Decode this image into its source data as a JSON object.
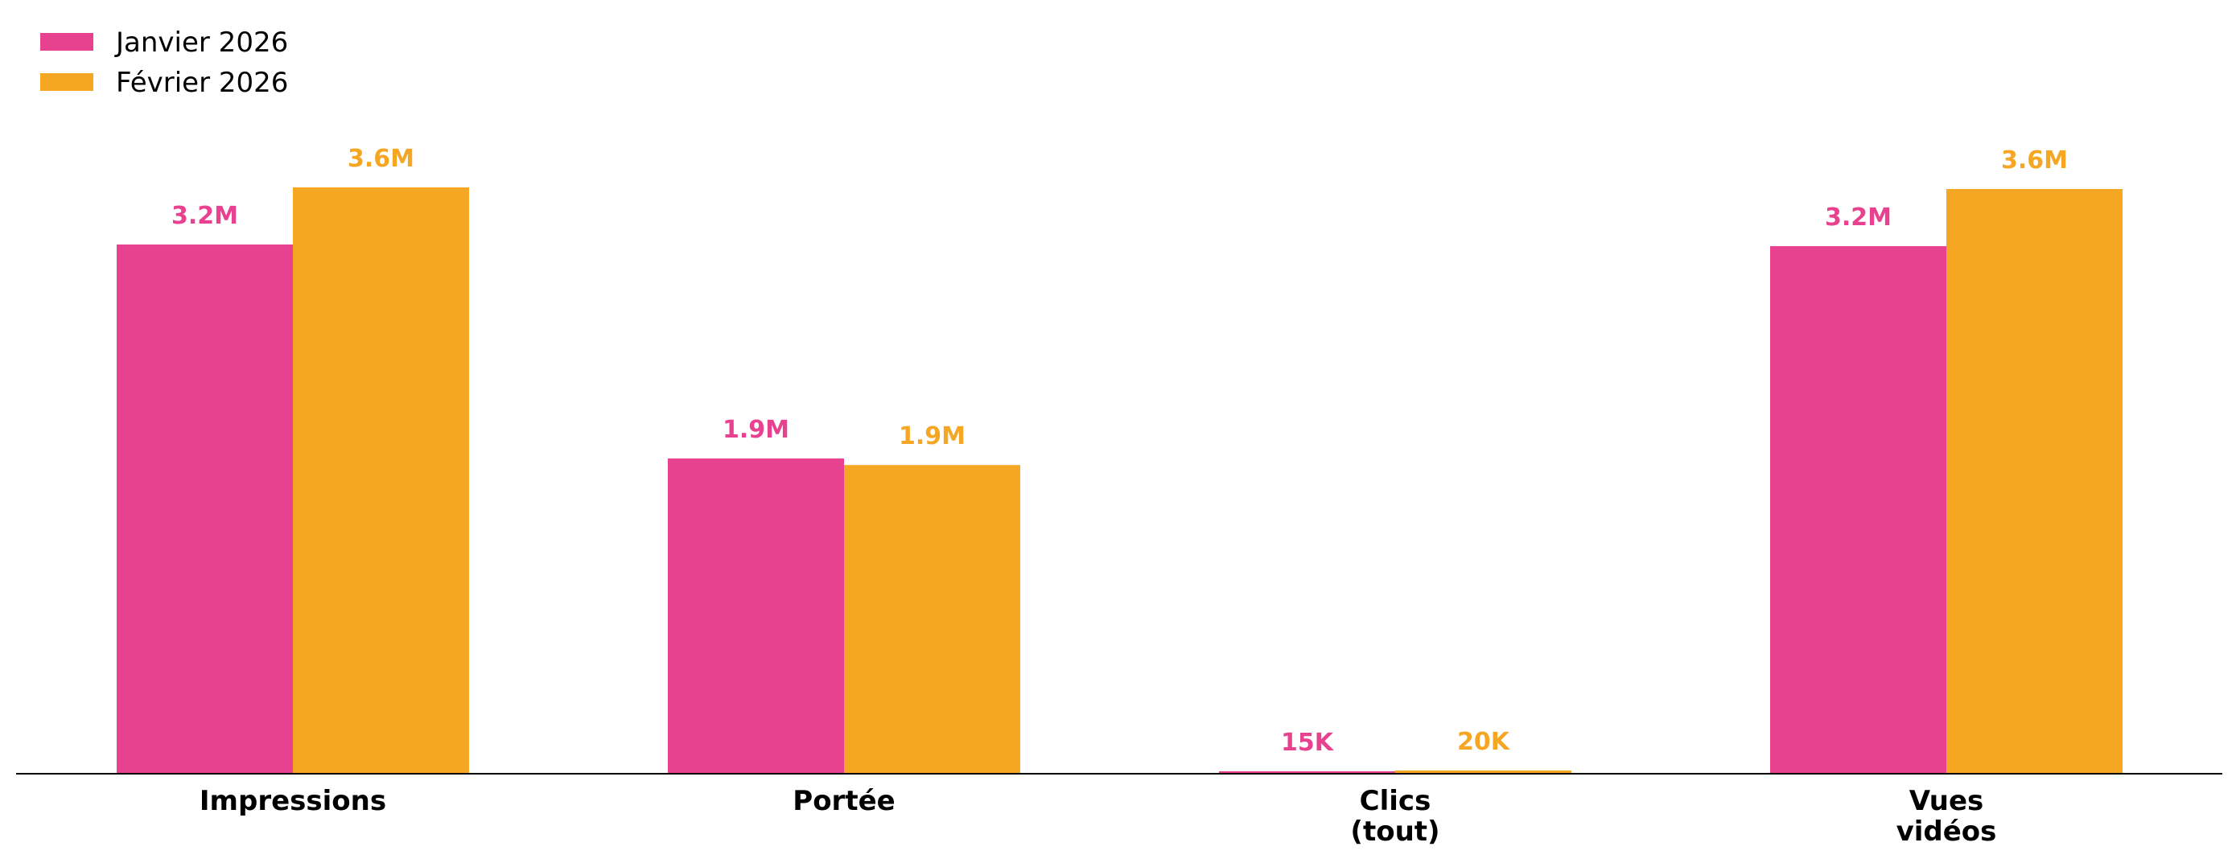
{
  "chart_data": {
    "type": "bar",
    "categories": [
      "Impressions",
      "Portée",
      "Clics\n(tout)",
      "Vues\nvidéos"
    ],
    "series": [
      {
        "name": "Janvier 2026",
        "color": "#E8418F",
        "values": [
          3240000,
          1930000,
          15000,
          3230000
        ],
        "labels": [
          "3.2M",
          "1.9M",
          "15K",
          "3.2M"
        ]
      },
      {
        "name": "Février 2026",
        "color": "#F5A623",
        "values": [
          3590000,
          1890000,
          20000,
          3580000
        ],
        "labels": [
          "3.6M",
          "1.9M",
          "20K",
          "3.6M"
        ]
      }
    ],
    "ylim": [
      0,
      3900000
    ],
    "grid": false,
    "legend": "top-left",
    "title": "",
    "xlabel": "",
    "ylabel": ""
  }
}
